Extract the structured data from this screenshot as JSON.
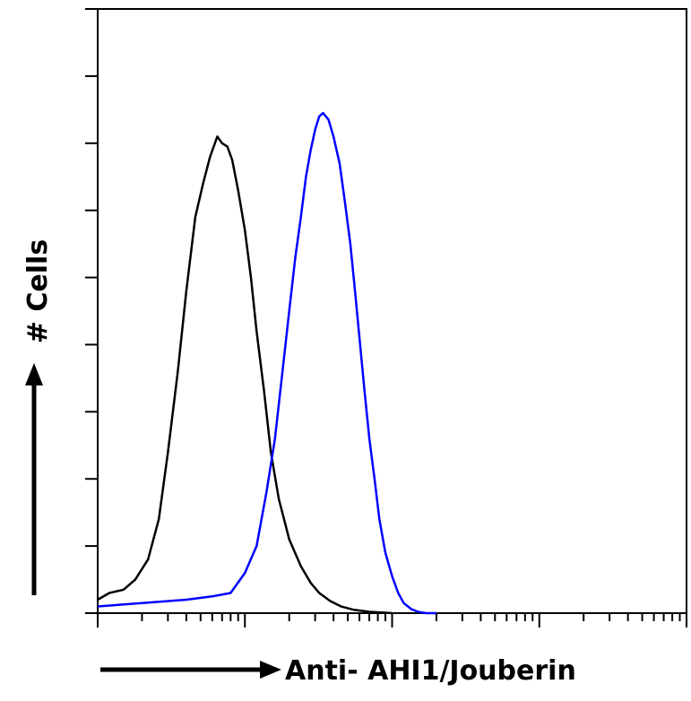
{
  "chart_data": {
    "type": "line",
    "title": "",
    "xlabel": "Anti- AHI1/Jouberin",
    "ylabel": "# Cells",
    "x_scale": "log",
    "xlim": [
      1,
      10000
    ],
    "ylim": [
      0,
      9
    ],
    "grid": false,
    "legend": "none",
    "series": [
      {
        "color": "#000000",
        "x": [
          1,
          1.2,
          1.5,
          1.8,
          2.2,
          2.6,
          3.0,
          3.5,
          4.0,
          4.6,
          5.2,
          5.8,
          6.5,
          7.0,
          7.6,
          8.2,
          9.0,
          10,
          11,
          12,
          13.5,
          15,
          17,
          20,
          24,
          28,
          32,
          38,
          45,
          55,
          70,
          85,
          100
        ],
        "y": [
          0.2,
          0.3,
          0.35,
          0.5,
          0.8,
          1.4,
          2.4,
          3.6,
          4.8,
          5.9,
          6.4,
          6.8,
          7.1,
          7.0,
          6.95,
          6.75,
          6.3,
          5.7,
          5.0,
          4.2,
          3.3,
          2.4,
          1.7,
          1.1,
          0.7,
          0.45,
          0.3,
          0.18,
          0.1,
          0.05,
          0.02,
          0.01,
          0
        ]
      },
      {
        "color": "#0000ff",
        "x": [
          1,
          2,
          4,
          6,
          8,
          10,
          12,
          14,
          16,
          18,
          20,
          22,
          24,
          26,
          28,
          30,
          32,
          34,
          37,
          40,
          44,
          48,
          52,
          56,
          60,
          65,
          70,
          76,
          82,
          90,
          100,
          110,
          120,
          135,
          150,
          170,
          200
        ],
        "y": [
          0.1,
          0.15,
          0.2,
          0.25,
          0.3,
          0.6,
          1.0,
          1.8,
          2.6,
          3.6,
          4.5,
          5.3,
          5.9,
          6.5,
          6.9,
          7.2,
          7.4,
          7.45,
          7.35,
          7.1,
          6.7,
          6.1,
          5.5,
          4.8,
          4.1,
          3.3,
          2.6,
          2.0,
          1.4,
          0.9,
          0.55,
          0.3,
          0.15,
          0.06,
          0.02,
          0,
          0
        ]
      }
    ]
  }
}
